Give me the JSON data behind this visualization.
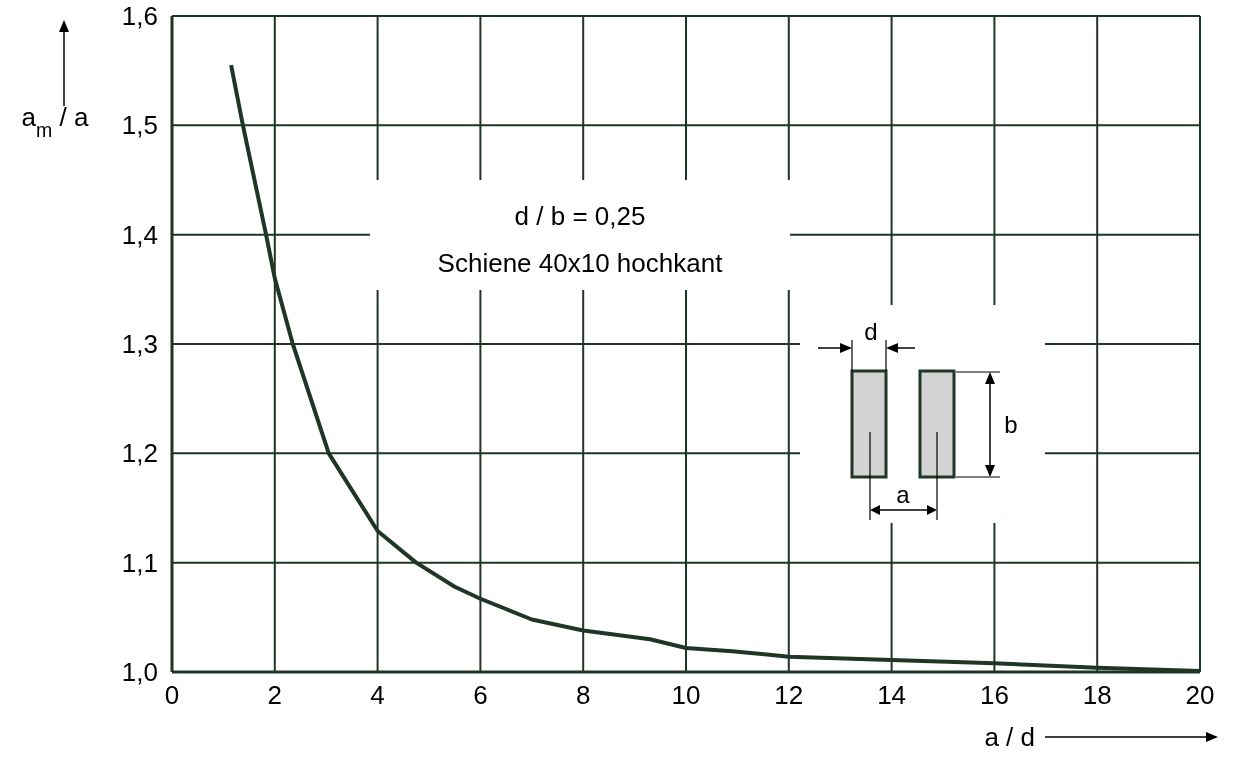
{
  "chart_data": {
    "type": "line",
    "xlabel": "a / d",
    "ylabel": "a$_{m}$ / a",
    "xlim": [
      0,
      20
    ],
    "xticks": [
      0,
      2,
      4,
      6,
      8,
      10,
      12,
      14,
      16,
      18,
      20
    ],
    "ylim": [
      1.0,
      1.6
    ],
    "yticks": [
      {
        "value": 1.0,
        "label": "1,0"
      },
      {
        "value": 1.1,
        "label": "1,1"
      },
      {
        "value": 1.2,
        "label": "1,2"
      },
      {
        "value": 1.3,
        "label": "1,3"
      },
      {
        "value": 1.4,
        "label": "1,4"
      },
      {
        "value": 1.5,
        "label": "1,5"
      },
      {
        "value": 1.6,
        "label": "1,6"
      }
    ],
    "grid": true,
    "marker": "none",
    "line_style": "solid",
    "series": [
      {
        "color": "#1f3526",
        "x": [
          1.15,
          1.38,
          1.83,
          2,
          2.35,
          3.05,
          4,
          4.75,
          5.5,
          6,
          7,
          8,
          9.3,
          10,
          10.9,
          12,
          14,
          16,
          18,
          20
        ],
        "values": [
          1.555,
          1.5,
          1.4,
          1.36,
          1.3,
          1.2,
          1.129,
          1.1,
          1.078,
          1.067,
          1.048,
          1.038,
          1.03,
          1.022,
          1.019,
          1.014,
          1.011,
          1.008,
          1.004,
          1.001
        ]
      }
    ],
    "annotations": [
      "d / b = 0,25",
      "Schiene 40x10 hochkant",
      "d",
      "b",
      "a"
    ]
  }
}
